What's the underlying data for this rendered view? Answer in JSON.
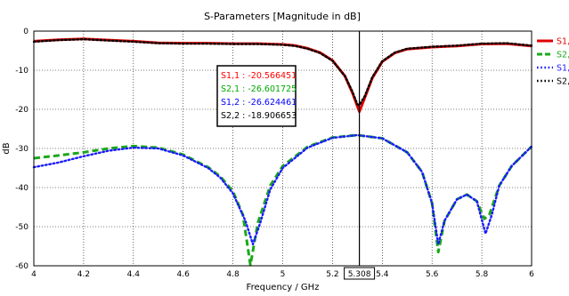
{
  "chart_data": {
    "type": "line",
    "title": "S-Parameters [Magnitude in dB]",
    "xlabel": "Frequency / GHz",
    "ylabel": "dB",
    "xlim": [
      4,
      6
    ],
    "ylim": [
      -60,
      0
    ],
    "x_ticks": [
      "4",
      "4.2",
      "4.4",
      "4.6",
      "4.8",
      "5",
      "5.2",
      "5.4",
      "5.6",
      "5.8",
      "6"
    ],
    "y_ticks": [
      "0",
      "-10",
      "-20",
      "-30",
      "-40",
      "-50",
      "-60"
    ],
    "grid": true,
    "marker": {
      "x": 5.308,
      "label": "5.308"
    },
    "annotations": [
      {
        "text": "S1,1 : -20.566451",
        "color": "#ff0000"
      },
      {
        "text": "S2,1 : -26.601725",
        "color": "#00aa00"
      },
      {
        "text": "S1,2 : -26.624461",
        "color": "#0000ff"
      },
      {
        "text": "S2,2 : -18.906653",
        "color": "#000000"
      }
    ],
    "legend_position": "right",
    "series": [
      {
        "name": "S1,1",
        "color": "#e00000",
        "style": "solid",
        "points": [
          [
            4,
            -2.6
          ],
          [
            4.1,
            -2.2
          ],
          [
            4.2,
            -2.0
          ],
          [
            4.3,
            -2.3
          ],
          [
            4.4,
            -2.6
          ],
          [
            4.5,
            -3.0
          ],
          [
            4.6,
            -3.1
          ],
          [
            4.7,
            -3.1
          ],
          [
            4.8,
            -3.2
          ],
          [
            4.9,
            -3.2
          ],
          [
            5.0,
            -3.4
          ],
          [
            5.05,
            -3.7
          ],
          [
            5.1,
            -4.4
          ],
          [
            5.15,
            -5.5
          ],
          [
            5.2,
            -7.5
          ],
          [
            5.25,
            -11.5
          ],
          [
            5.28,
            -15.8
          ],
          [
            5.308,
            -20.6
          ],
          [
            5.33,
            -17.0
          ],
          [
            5.36,
            -12.0
          ],
          [
            5.4,
            -7.8
          ],
          [
            5.45,
            -5.6
          ],
          [
            5.5,
            -4.6
          ],
          [
            5.6,
            -4.1
          ],
          [
            5.7,
            -3.8
          ],
          [
            5.8,
            -3.3
          ],
          [
            5.9,
            -3.2
          ],
          [
            6.0,
            -3.8
          ]
        ]
      },
      {
        "name": "S2,1",
        "color": "#1aa81a",
        "style": "dashed",
        "points": [
          [
            4,
            -32.5
          ],
          [
            4.1,
            -31.8
          ],
          [
            4.2,
            -31.0
          ],
          [
            4.3,
            -30.0
          ],
          [
            4.4,
            -29.4
          ],
          [
            4.5,
            -29.8
          ],
          [
            4.6,
            -31.6
          ],
          [
            4.7,
            -34.8
          ],
          [
            4.75,
            -37.2
          ],
          [
            4.8,
            -41.0
          ],
          [
            4.84,
            -47.0
          ],
          [
            4.87,
            -59.8
          ],
          [
            4.9,
            -49.0
          ],
          [
            4.95,
            -39.5
          ],
          [
            5.0,
            -34.5
          ],
          [
            5.1,
            -29.6
          ],
          [
            5.2,
            -27.2
          ],
          [
            5.3,
            -26.6
          ],
          [
            5.4,
            -27.4
          ],
          [
            5.5,
            -31.0
          ],
          [
            5.56,
            -36.0
          ],
          [
            5.6,
            -44.0
          ],
          [
            5.625,
            -56.5
          ],
          [
            5.65,
            -48.5
          ],
          [
            5.7,
            -43.0
          ],
          [
            5.74,
            -41.8
          ],
          [
            5.78,
            -43.5
          ],
          [
            5.81,
            -48.0
          ],
          [
            5.83,
            -47.0
          ],
          [
            5.87,
            -39.5
          ],
          [
            5.92,
            -34.5
          ],
          [
            6.0,
            -29.5
          ]
        ]
      },
      {
        "name": "S1,2",
        "color": "#1a1aff",
        "style": "dotted",
        "points": [
          [
            4,
            -34.8
          ],
          [
            4.1,
            -33.6
          ],
          [
            4.2,
            -32.0
          ],
          [
            4.3,
            -30.6
          ],
          [
            4.4,
            -29.8
          ],
          [
            4.5,
            -30.0
          ],
          [
            4.6,
            -31.8
          ],
          [
            4.7,
            -35.0
          ],
          [
            4.75,
            -37.5
          ],
          [
            4.8,
            -41.5
          ],
          [
            4.85,
            -48.5
          ],
          [
            4.88,
            -54.5
          ],
          [
            4.91,
            -49.0
          ],
          [
            4.95,
            -40.5
          ],
          [
            5.0,
            -35.0
          ],
          [
            5.1,
            -29.8
          ],
          [
            5.2,
            -27.3
          ],
          [
            5.3,
            -26.6
          ],
          [
            5.4,
            -27.4
          ],
          [
            5.5,
            -31.0
          ],
          [
            5.56,
            -36.0
          ],
          [
            5.6,
            -44.0
          ],
          [
            5.625,
            -54.5
          ],
          [
            5.65,
            -48.5
          ],
          [
            5.7,
            -43.0
          ],
          [
            5.74,
            -41.8
          ],
          [
            5.78,
            -43.5
          ],
          [
            5.815,
            -51.8
          ],
          [
            5.84,
            -47.0
          ],
          [
            5.87,
            -39.5
          ],
          [
            5.92,
            -34.5
          ],
          [
            6.0,
            -29.5
          ]
        ]
      },
      {
        "name": "S2,2",
        "color": "#000000",
        "style": "dotted",
        "points": [
          [
            4,
            -2.7
          ],
          [
            4.1,
            -2.3
          ],
          [
            4.2,
            -2.1
          ],
          [
            4.3,
            -2.4
          ],
          [
            4.4,
            -2.7
          ],
          [
            4.5,
            -3.1
          ],
          [
            4.6,
            -3.2
          ],
          [
            4.7,
            -3.2
          ],
          [
            4.8,
            -3.3
          ],
          [
            4.9,
            -3.3
          ],
          [
            5.0,
            -3.5
          ],
          [
            5.05,
            -3.8
          ],
          [
            5.1,
            -4.5
          ],
          [
            5.15,
            -5.6
          ],
          [
            5.2,
            -7.6
          ],
          [
            5.25,
            -11.5
          ],
          [
            5.28,
            -15.5
          ],
          [
            5.3,
            -18.7
          ],
          [
            5.308,
            -18.9
          ],
          [
            5.33,
            -16.6
          ],
          [
            5.36,
            -11.8
          ],
          [
            5.4,
            -7.7
          ],
          [
            5.45,
            -5.5
          ],
          [
            5.5,
            -4.5
          ],
          [
            5.6,
            -4.0
          ],
          [
            5.7,
            -3.7
          ],
          [
            5.8,
            -3.2
          ],
          [
            5.9,
            -3.1
          ],
          [
            6.0,
            -3.7
          ]
        ]
      }
    ]
  }
}
